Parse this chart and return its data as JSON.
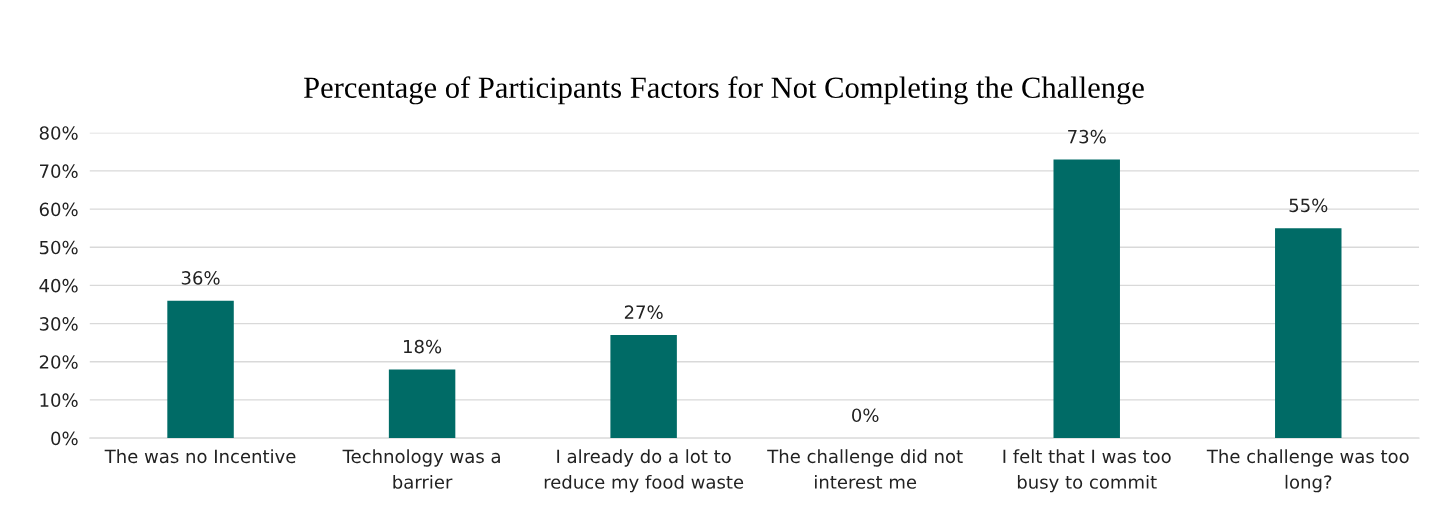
{
  "chart_data": {
    "type": "bar",
    "title": "Percentage of Participants Factors for Not Completing the Challenge",
    "categories": [
      "The was no Incentive",
      "Technology was a barrier",
      "I already do a lot to reduce my food waste",
      "The challenge did not interest me",
      "I felt that I was too busy to commit",
      "The challenge was too long?"
    ],
    "values": [
      36,
      18,
      27,
      0,
      73,
      55
    ],
    "value_labels": [
      "36%",
      "18%",
      "27%",
      "0%",
      "73%",
      "55%"
    ],
    "color": "#006b66",
    "ylim": [
      0,
      80
    ],
    "yticks": [
      {
        "value": 0,
        "label": "0%"
      },
      {
        "value": 10,
        "label": "10%"
      },
      {
        "value": 20,
        "label": "20%"
      },
      {
        "value": 30,
        "label": "30%"
      },
      {
        "value": 40,
        "label": "40%"
      },
      {
        "value": 50,
        "label": "50%"
      },
      {
        "value": 60,
        "label": "60%"
      },
      {
        "value": 70,
        "label": "70%"
      },
      {
        "value": 80,
        "label": "80%"
      }
    ],
    "grid": "y"
  }
}
